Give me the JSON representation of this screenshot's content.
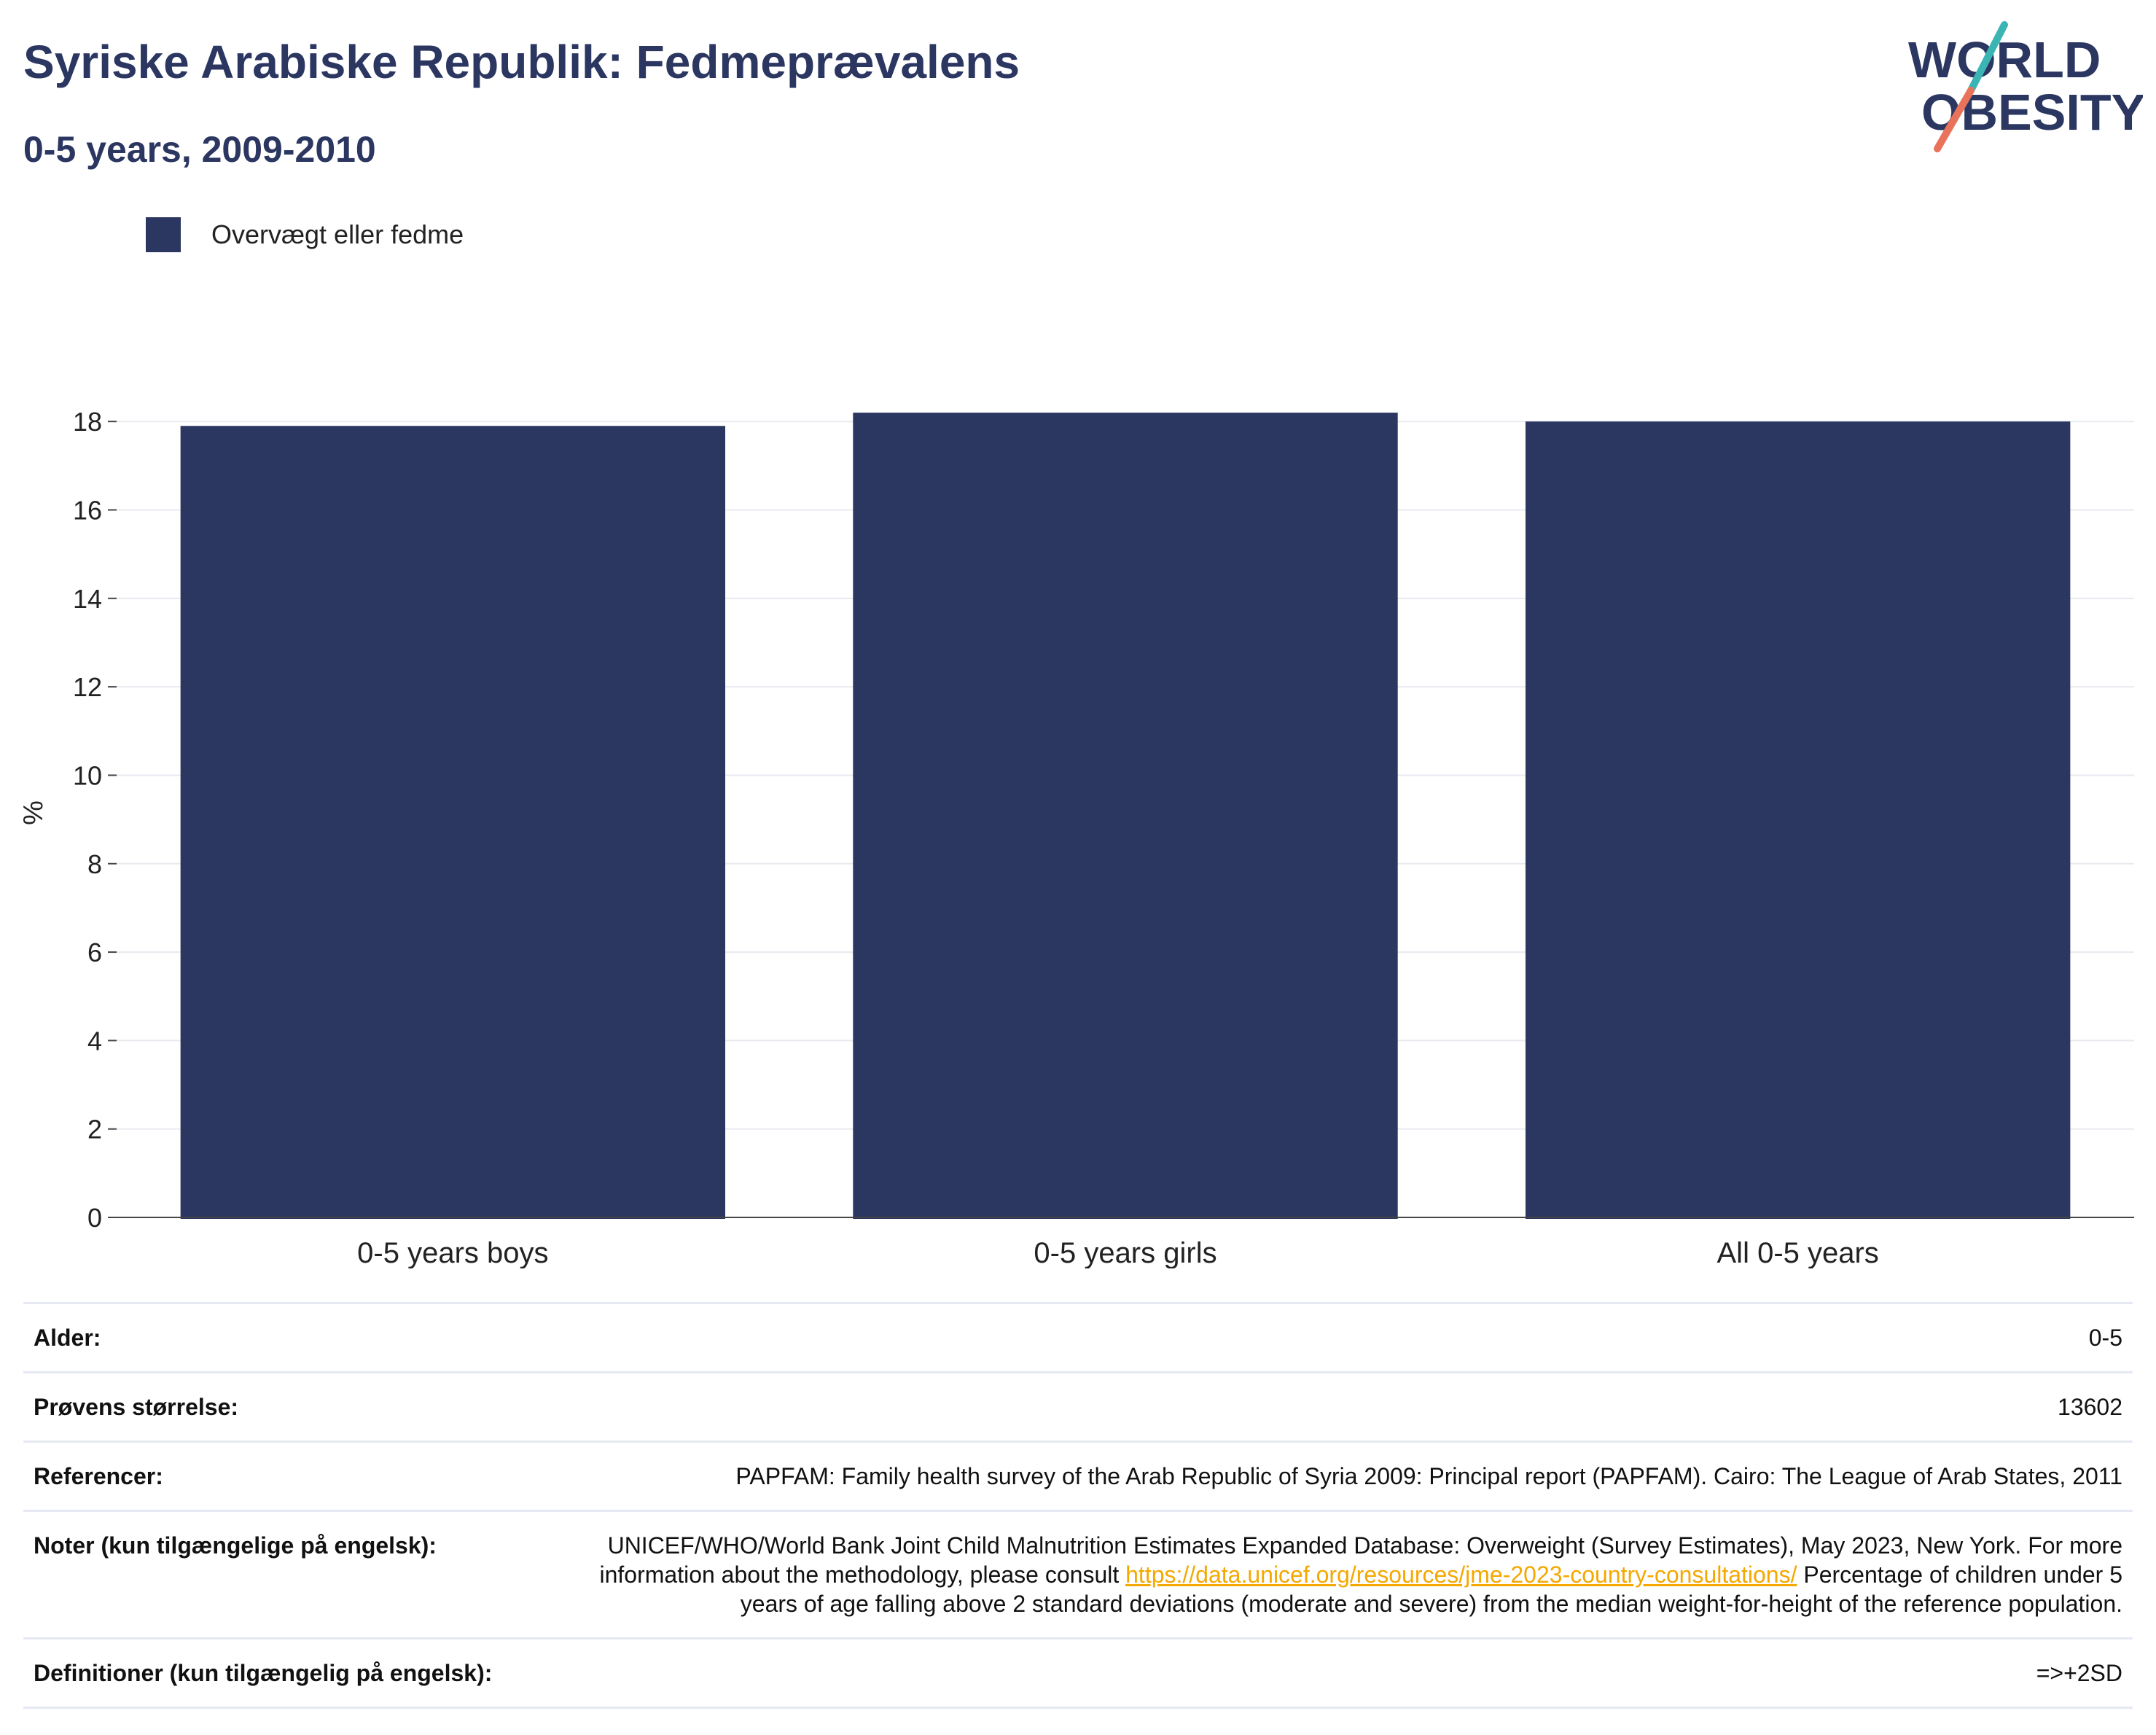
{
  "header": {
    "title": "Syriske Arabiske Republik: Fedmeprævalens",
    "subtitle": "0-5 years, 2009-2010"
  },
  "logo": {
    "line1": "WORLD",
    "line2": "OBESITY"
  },
  "colors": {
    "bar": "#2b3661",
    "title": "#2b3661",
    "logo_teal": "#3bb4b4",
    "logo_coral": "#e8735a",
    "link": "#f4a800"
  },
  "chart_data": {
    "type": "bar",
    "categories": [
      "0-5 years boys",
      "0-5 years girls",
      "All 0-5 years"
    ],
    "series": [
      {
        "name": "Overvægt eller fedme",
        "values": [
          17.9,
          18.2,
          18.0
        ]
      }
    ],
    "ylabel": "%",
    "ylim": [
      0,
      18.3
    ],
    "yticks": [
      "0",
      "2",
      "4",
      "6",
      "8",
      "10",
      "12",
      "14",
      "16",
      "18"
    ],
    "grid": true,
    "legend": "top-left"
  },
  "info": {
    "age": {
      "label": "Alder:",
      "value": "0-5"
    },
    "sample": {
      "label": "Prøvens størrelse:",
      "value": "13602"
    },
    "references": {
      "label": "Referencer:",
      "value": "PAPFAM: Family health survey of the Arab Republic of Syria 2009: Principal report (PAPFAM). Cairo: The League of Arab States, 2011"
    },
    "notes": {
      "label": "Noter (kun tilgængelige på engelsk):",
      "text_before": "UNICEF/WHO/World Bank Joint Child Malnutrition Estimates Expanded Database: Overweight (Survey Estimates), May 2023, New York. For more information about the methodology, please consult ",
      "link": "https://data.unicef.org/resources/jme-2023-country-consultations/",
      "text_after": " Percentage of children under 5 years of age falling above 2 standard deviations (moderate and severe) from the median weight-for-height of the reference population."
    },
    "definitions": {
      "label": "Definitioner (kun tilgængelig på engelsk):",
      "value": "=>+2SD"
    }
  }
}
